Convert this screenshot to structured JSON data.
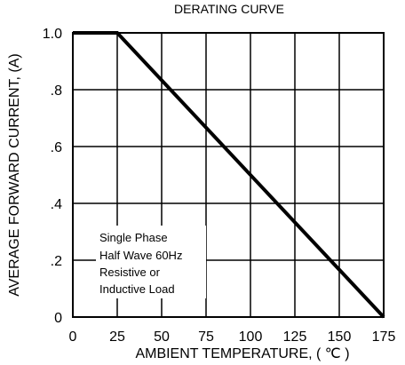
{
  "chart_data": {
    "type": "line",
    "title": "DERATING CURVE",
    "xlabel": "AMBIENT TEMPERATURE, ( ℃ )",
    "ylabel": "AVERAGE FORWARD CURRENT, (A)",
    "xlim": [
      0,
      175
    ],
    "ylim": [
      0,
      1.0
    ],
    "x_ticks": [
      0,
      25,
      50,
      75,
      100,
      125,
      150,
      175
    ],
    "x_tick_labels": [
      "0",
      "25",
      "50",
      "75",
      "100",
      "125",
      "150",
      "175"
    ],
    "y_ticks": [
      0,
      0.2,
      0.4,
      0.6,
      0.8,
      1.0
    ],
    "y_tick_labels": [
      "0",
      ".2",
      ".4",
      ".6",
      ".8",
      "1.0"
    ],
    "grid": true,
    "series": [
      {
        "x": [
          0,
          25,
          175
        ],
        "y": [
          1.0,
          1.0,
          0.0
        ]
      }
    ],
    "annotation": [
      "Single Phase",
      "Half Wave 60Hz",
      "Resistive or",
      "Inductive Load"
    ]
  },
  "colors": {
    "line": "#000000",
    "grid": "#000000",
    "background": "#ffffff"
  }
}
